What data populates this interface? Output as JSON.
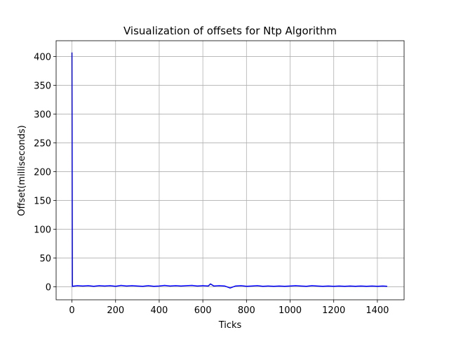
{
  "chart_data": {
    "type": "line",
    "title": "Visualization of offsets for Ntp Algorithm",
    "xlabel": "Ticks",
    "ylabel": "Offset(milliseconds)",
    "x": [
      0,
      2,
      25,
      50,
      75,
      100,
      125,
      150,
      175,
      200,
      225,
      250,
      275,
      300,
      325,
      350,
      375,
      400,
      425,
      450,
      475,
      500,
      525,
      550,
      575,
      600,
      625,
      635,
      650,
      675,
      700,
      725,
      750,
      775,
      800,
      825,
      850,
      875,
      900,
      925,
      950,
      975,
      1000,
      1025,
      1050,
      1075,
      1100,
      1125,
      1150,
      1175,
      1200,
      1225,
      1250,
      1275,
      1300,
      1325,
      1350,
      1375,
      1400,
      1425,
      1445
    ],
    "values": [
      407,
      1,
      2,
      1.5,
      2,
      1,
      2,
      1.5,
      2,
      1,
      2.5,
      1.5,
      2,
      1.5,
      1,
      2,
      1,
      1.5,
      2.5,
      1.5,
      2,
      1.5,
      2,
      2.5,
      1.5,
      2,
      1.5,
      5,
      1.5,
      2,
      1.5,
      -2,
      1.5,
      2,
      1,
      1.5,
      2,
      1,
      1.5,
      1,
      1.5,
      1,
      1.5,
      2,
      1.5,
      1,
      2,
      1.5,
      1,
      1.5,
      1,
      1.5,
      1,
      1.5,
      1,
      1.5,
      1,
      1.5,
      1,
      1.5,
      1
    ],
    "color": "#0000ff",
    "xlim": [
      -72.5,
      1522.5
    ],
    "ylim": [
      -22.5,
      427.5
    ],
    "xticks": [
      0,
      200,
      400,
      600,
      800,
      1000,
      1200,
      1400
    ],
    "yticks": [
      0,
      50,
      100,
      150,
      200,
      250,
      300,
      350,
      400
    ],
    "grid": true
  }
}
